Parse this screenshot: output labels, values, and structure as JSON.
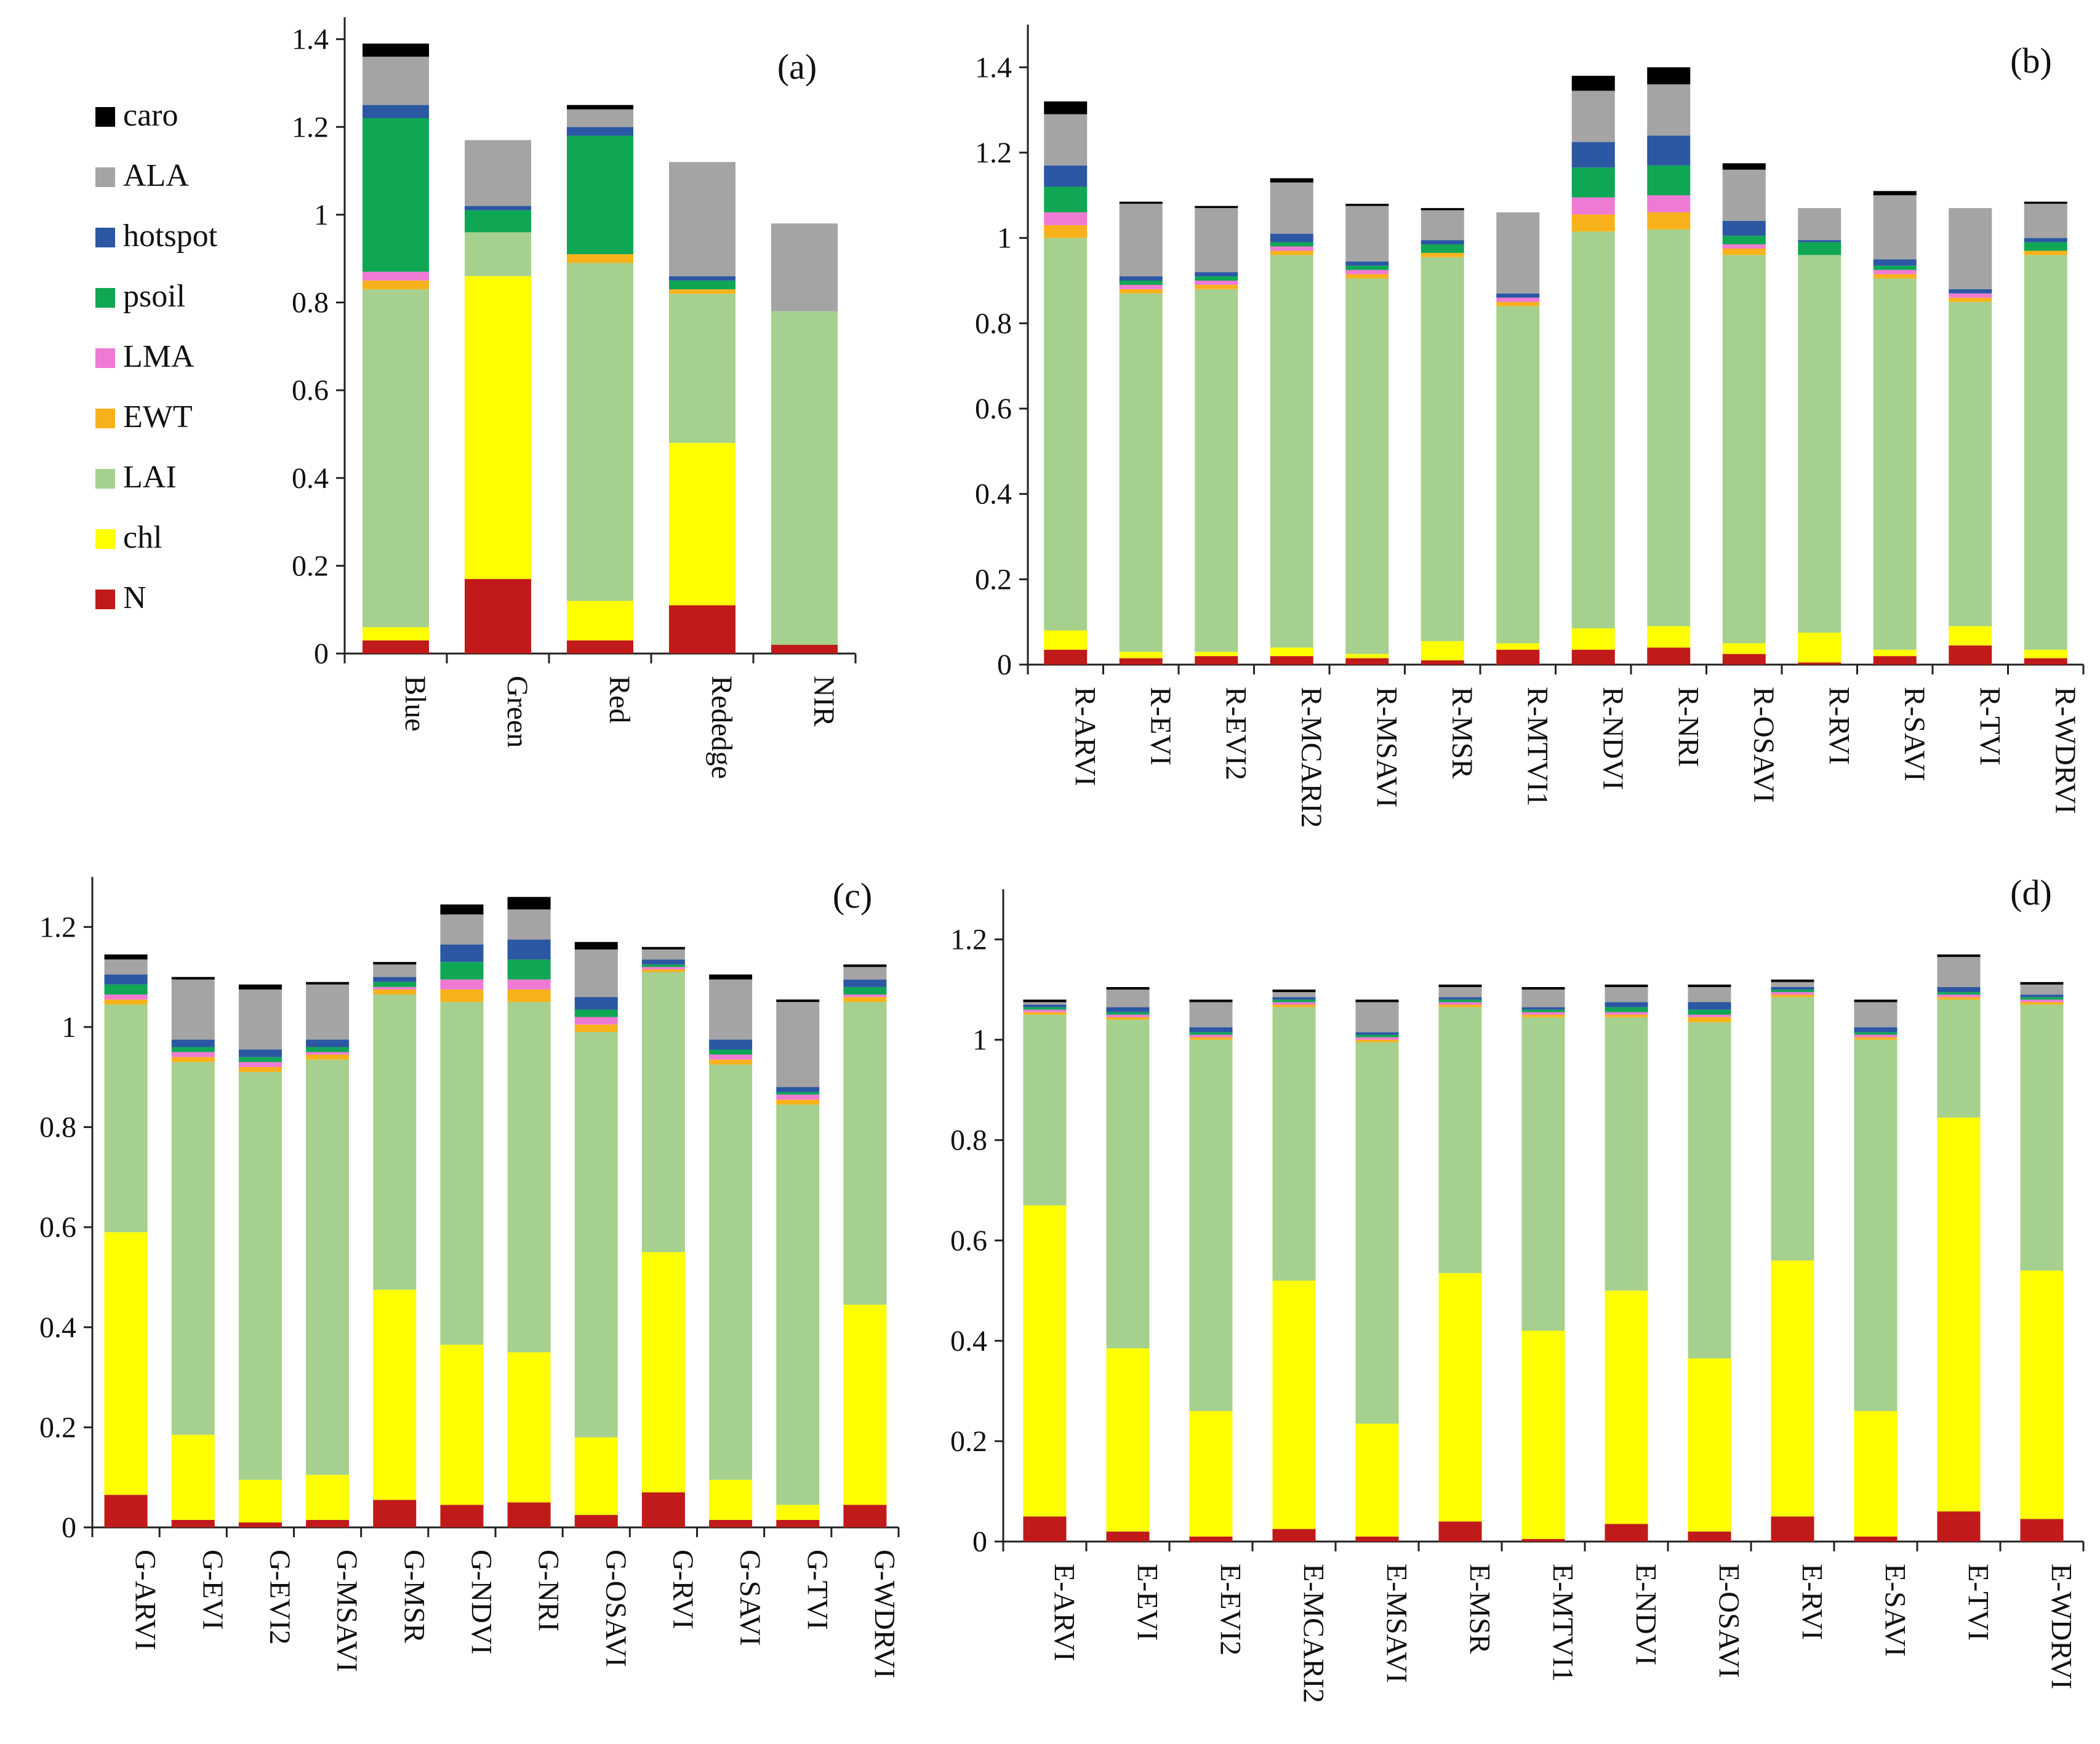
{
  "colors": {
    "N": "#c01a1a",
    "chl": "#ffff00",
    "LAI": "#a6d08e",
    "EWT": "#f7b21b",
    "LMA": "#ef7ad3",
    "psoil": "#0fa654",
    "hotspot": "#2b57a3",
    "ALA": "#a4a4a4",
    "caro": "#000000"
  },
  "legend": {
    "entries": [
      "caro",
      "ALA",
      "hotspot",
      "psoil",
      "LMA",
      "EWT",
      "LAI",
      "chl",
      "N"
    ]
  },
  "chart_data": [
    {
      "type": "bar",
      "stacked": true,
      "panel_label": "(a)",
      "series_order": [
        "N",
        "chl",
        "LAI",
        "EWT",
        "LMA",
        "psoil",
        "hotspot",
        "ALA",
        "caro"
      ],
      "categories": [
        "Blue",
        "Green",
        "Red",
        "Rededge",
        "NIR"
      ],
      "yticks": [
        "0",
        "0.2",
        "0.4",
        "0.6",
        "0.8",
        "1",
        "1.2",
        "1.4"
      ],
      "ylim": [
        0,
        1.45
      ],
      "series": [
        {
          "name": "N",
          "values": [
            0.03,
            0.17,
            0.03,
            0.11,
            0.02
          ]
        },
        {
          "name": "chl",
          "values": [
            0.03,
            0.69,
            0.09,
            0.37,
            0.0
          ]
        },
        {
          "name": "LAI",
          "values": [
            0.77,
            0.1,
            0.77,
            0.34,
            0.76
          ]
        },
        {
          "name": "EWT",
          "values": [
            0.02,
            0.0,
            0.02,
            0.01,
            0.0
          ]
        },
        {
          "name": "LMA",
          "values": [
            0.02,
            0.0,
            0.0,
            0.0,
            0.0
          ]
        },
        {
          "name": "psoil",
          "values": [
            0.35,
            0.05,
            0.27,
            0.02,
            0.0
          ]
        },
        {
          "name": "hotspot",
          "values": [
            0.03,
            0.01,
            0.02,
            0.01,
            0.0
          ]
        },
        {
          "name": "ALA",
          "values": [
            0.11,
            0.15,
            0.04,
            0.26,
            0.2
          ]
        },
        {
          "name": "caro",
          "values": [
            0.03,
            0.0,
            0.01,
            0.0,
            0.0
          ]
        }
      ]
    },
    {
      "type": "bar",
      "stacked": true,
      "panel_label": "(b)",
      "series_order": [
        "N",
        "chl",
        "LAI",
        "EWT",
        "LMA",
        "psoil",
        "hotspot",
        "ALA",
        "caro"
      ],
      "categories": [
        "R-ARVI",
        "R-EVI",
        "R-EVI2",
        "R-MCARI2",
        "R-MSAVI",
        "R-MSR",
        "R-MTVI1",
        "R-NDVI",
        "R-NRI",
        "R-OSAVI",
        "R-RVI",
        "R-SAVI",
        "R-TVI",
        "R-WDRVI"
      ],
      "yticks": [
        "0",
        "0.2",
        "0.4",
        "0.6",
        "0.8",
        "1",
        "1.2",
        "1.4"
      ],
      "ylim": [
        0,
        1.5
      ],
      "series": [
        {
          "name": "N",
          "values": [
            0.035,
            0.015,
            0.02,
            0.02,
            0.015,
            0.01,
            0.035,
            0.035,
            0.04,
            0.025,
            0.005,
            0.02,
            0.045,
            0.015
          ]
        },
        {
          "name": "chl",
          "values": [
            0.045,
            0.015,
            0.01,
            0.02,
            0.01,
            0.045,
            0.015,
            0.05,
            0.05,
            0.025,
            0.07,
            0.015,
            0.045,
            0.02
          ]
        },
        {
          "name": "LAI",
          "values": [
            0.92,
            0.84,
            0.85,
            0.92,
            0.88,
            0.9,
            0.79,
            0.93,
            0.93,
            0.91,
            0.885,
            0.87,
            0.76,
            0.925
          ]
        },
        {
          "name": "EWT",
          "values": [
            0.03,
            0.01,
            0.01,
            0.01,
            0.01,
            0.01,
            0.01,
            0.04,
            0.04,
            0.015,
            0.0,
            0.01,
            0.01,
            0.01
          ]
        },
        {
          "name": "LMA",
          "values": [
            0.03,
            0.01,
            0.01,
            0.01,
            0.01,
            0.0,
            0.01,
            0.04,
            0.04,
            0.01,
            0.0,
            0.01,
            0.01,
            0.0
          ]
        },
        {
          "name": "psoil",
          "values": [
            0.06,
            0.01,
            0.01,
            0.01,
            0.01,
            0.02,
            0.0,
            0.07,
            0.07,
            0.02,
            0.03,
            0.01,
            0.0,
            0.02
          ]
        },
        {
          "name": "hotspot",
          "values": [
            0.05,
            0.01,
            0.01,
            0.02,
            0.01,
            0.01,
            0.01,
            0.06,
            0.07,
            0.035,
            0.005,
            0.015,
            0.01,
            0.01
          ]
        },
        {
          "name": "ALA",
          "values": [
            0.12,
            0.17,
            0.15,
            0.12,
            0.13,
            0.07,
            0.19,
            0.12,
            0.12,
            0.12,
            0.075,
            0.15,
            0.19,
            0.08
          ]
        },
        {
          "name": "caro",
          "values": [
            0.03,
            0.005,
            0.005,
            0.01,
            0.005,
            0.005,
            0.0,
            0.035,
            0.04,
            0.015,
            0.0,
            0.01,
            0.0,
            0.005
          ]
        }
      ]
    },
    {
      "type": "bar",
      "stacked": true,
      "panel_label": "(c)",
      "series_order": [
        "N",
        "chl",
        "LAI",
        "EWT",
        "LMA",
        "psoil",
        "hotspot",
        "ALA",
        "caro"
      ],
      "categories": [
        "G-ARVI",
        "G-EVI",
        "G-EVI2",
        "G-MSAVI",
        "G-MSR",
        "G-NDVI",
        "G-NRI",
        "G-OSAVI",
        "G-RVI",
        "G-SAVI",
        "G-TVI",
        "G-WDRVI"
      ],
      "yticks": [
        "0",
        "0.2",
        "0.4",
        "0.6",
        "0.8",
        "1",
        "1.2"
      ],
      "ylim": [
        0,
        1.3
      ],
      "series": [
        {
          "name": "N",
          "values": [
            0.065,
            0.015,
            0.01,
            0.015,
            0.055,
            0.045,
            0.05,
            0.025,
            0.07,
            0.015,
            0.015,
            0.045
          ]
        },
        {
          "name": "chl",
          "values": [
            0.525,
            0.17,
            0.085,
            0.09,
            0.42,
            0.32,
            0.3,
            0.155,
            0.48,
            0.08,
            0.03,
            0.4
          ]
        },
        {
          "name": "LAI",
          "values": [
            0.455,
            0.745,
            0.815,
            0.83,
            0.59,
            0.685,
            0.7,
            0.81,
            0.56,
            0.83,
            0.8,
            0.605
          ]
        },
        {
          "name": "EWT",
          "values": [
            0.01,
            0.01,
            0.01,
            0.01,
            0.01,
            0.025,
            0.025,
            0.015,
            0.005,
            0.01,
            0.01,
            0.01
          ]
        },
        {
          "name": "LMA",
          "values": [
            0.01,
            0.01,
            0.01,
            0.005,
            0.005,
            0.02,
            0.02,
            0.015,
            0.005,
            0.01,
            0.01,
            0.005
          ]
        },
        {
          "name": "psoil",
          "values": [
            0.02,
            0.01,
            0.01,
            0.01,
            0.01,
            0.035,
            0.04,
            0.015,
            0.005,
            0.01,
            0.005,
            0.015
          ]
        },
        {
          "name": "hotspot",
          "values": [
            0.02,
            0.015,
            0.015,
            0.015,
            0.01,
            0.035,
            0.04,
            0.025,
            0.01,
            0.02,
            0.01,
            0.015
          ]
        },
        {
          "name": "ALA",
          "values": [
            0.03,
            0.12,
            0.12,
            0.11,
            0.025,
            0.06,
            0.06,
            0.095,
            0.02,
            0.12,
            0.17,
            0.025
          ]
        },
        {
          "name": "caro",
          "values": [
            0.01,
            0.005,
            0.01,
            0.005,
            0.005,
            0.02,
            0.025,
            0.015,
            0.005,
            0.01,
            0.005,
            0.005
          ]
        }
      ]
    },
    {
      "type": "bar",
      "stacked": true,
      "panel_label": "(d)",
      "series_order": [
        "N",
        "chl",
        "LAI",
        "EWT",
        "LMA",
        "psoil",
        "hotspot",
        "ALA",
        "caro"
      ],
      "categories": [
        "E-ARVI",
        "E-EVI",
        "E-EVI2",
        "E-MCARI2",
        "E-MSAVI",
        "E-MSR",
        "E-MTVI1",
        "E-NDVI",
        "E-OSAVI",
        "E-RVI",
        "E-SAVI",
        "E-TVI",
        "E-WDRVI"
      ],
      "yticks": [
        "0",
        "0.2",
        "0.4",
        "0.6",
        "0.8",
        "1",
        "1.2"
      ],
      "ylim": [
        0,
        1.3
      ],
      "series": [
        {
          "name": "N",
          "values": [
            0.05,
            0.02,
            0.01,
            0.025,
            0.01,
            0.04,
            0.005,
            0.035,
            0.02,
            0.05,
            0.01,
            0.06,
            0.045
          ]
        },
        {
          "name": "chl",
          "values": [
            0.62,
            0.365,
            0.25,
            0.495,
            0.225,
            0.495,
            0.415,
            0.465,
            0.345,
            0.51,
            0.25,
            0.785,
            0.495
          ]
        },
        {
          "name": "LAI",
          "values": [
            0.38,
            0.655,
            0.74,
            0.545,
            0.76,
            0.53,
            0.625,
            0.545,
            0.67,
            0.525,
            0.74,
            0.235,
            0.53
          ]
        },
        {
          "name": "EWT",
          "values": [
            0.005,
            0.005,
            0.005,
            0.005,
            0.005,
            0.005,
            0.005,
            0.005,
            0.01,
            0.005,
            0.005,
            0.005,
            0.005
          ]
        },
        {
          "name": "LMA",
          "values": [
            0.005,
            0.005,
            0.005,
            0.005,
            0.005,
            0.005,
            0.005,
            0.005,
            0.005,
            0.005,
            0.005,
            0.005,
            0.005
          ]
        },
        {
          "name": "psoil",
          "values": [
            0.005,
            0.005,
            0.005,
            0.005,
            0.005,
            0.005,
            0.005,
            0.01,
            0.01,
            0.005,
            0.005,
            0.005,
            0.005
          ]
        },
        {
          "name": "hotspot",
          "values": [
            0.005,
            0.01,
            0.01,
            0.005,
            0.005,
            0.005,
            0.005,
            0.01,
            0.015,
            0.005,
            0.01,
            0.01,
            0.005
          ]
        },
        {
          "name": "ALA",
          "values": [
            0.005,
            0.035,
            0.05,
            0.01,
            0.06,
            0.02,
            0.035,
            0.03,
            0.03,
            0.01,
            0.05,
            0.06,
            0.02
          ]
        },
        {
          "name": "caro",
          "values": [
            0.005,
            0.005,
            0.005,
            0.005,
            0.005,
            0.005,
            0.005,
            0.005,
            0.005,
            0.005,
            0.005,
            0.005,
            0.005
          ]
        }
      ]
    }
  ]
}
